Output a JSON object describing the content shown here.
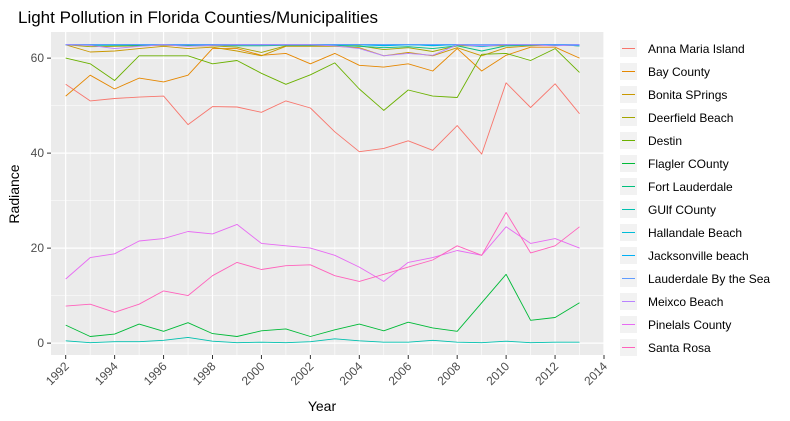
{
  "chart_data": {
    "type": "line",
    "title": "Light Pollution in Florida Counties/Municipalities",
    "xlabel": "Year",
    "ylabel": "Radiance",
    "xlim": [
      1991.4,
      2014.0
    ],
    "ylim": [
      -2.5,
      65.5
    ],
    "x_ticks": [
      "1992",
      "1994",
      "1996",
      "1998",
      "2000",
      "2002",
      "2004",
      "2006",
      "2008",
      "2010",
      "2012",
      "2014"
    ],
    "y_ticks": [
      "0",
      "20",
      "40",
      "60"
    ],
    "grid": true,
    "legend_position": "right",
    "x": [
      1992,
      1993,
      1994,
      1995,
      1996,
      1997,
      1998,
      1999,
      2000,
      2001,
      2002,
      2003,
      2004,
      2005,
      2006,
      2007,
      2008,
      2009,
      2010,
      2011,
      2012,
      2013
    ],
    "series": [
      {
        "name": "Anna Maria Island",
        "color": "#F8766D",
        "values": [
          54.5,
          51.0,
          51.5,
          51.8,
          52.0,
          46.0,
          49.8,
          49.7,
          48.6,
          51.0,
          49.5,
          44.5,
          40.3,
          41.0,
          42.6,
          40.6,
          45.8,
          39.8,
          54.8,
          49.6,
          54.6,
          48.3
        ]
      },
      {
        "name": "Bay County",
        "color": "#E58700",
        "values": [
          52.0,
          56.4,
          53.5,
          55.8,
          55.0,
          56.4,
          62.0,
          62.0,
          60.6,
          61.0,
          58.8,
          61.0,
          58.5,
          58.1,
          58.8,
          57.3,
          62.0,
          57.3,
          60.6,
          62.3,
          62.3,
          60.0
        ]
      },
      {
        "name": "Bonita SPrings",
        "color": "#C99800",
        "values": [
          62.8,
          61.3,
          61.5,
          62.0,
          62.5,
          62.0,
          62.3,
          61.5,
          60.5,
          62.5,
          62.5,
          62.5,
          62.2,
          60.5,
          61.2,
          60.5,
          62.2,
          60.5,
          62.2,
          62.6,
          62.8,
          62.6
        ]
      },
      {
        "name": "Deerfield Beach",
        "color": "#A3A500",
        "values": [
          62.8,
          62.4,
          62.5,
          62.6,
          62.7,
          62.6,
          62.6,
          62.3,
          61.2,
          62.6,
          62.6,
          62.6,
          62.6,
          61.8,
          62.2,
          61.4,
          62.6,
          62.6,
          62.6,
          62.7,
          62.8,
          62.6
        ]
      },
      {
        "name": "Destin",
        "color": "#6BB100",
        "values": [
          60.0,
          58.8,
          55.3,
          60.5,
          60.5,
          60.5,
          58.8,
          59.5,
          56.8,
          54.5,
          56.5,
          59.0,
          53.5,
          49.0,
          53.3,
          52.0,
          51.7,
          60.8,
          61.0,
          59.5,
          62.0,
          57.0
        ]
      },
      {
        "name": "Flagler COunty",
        "color": "#00BA38",
        "values": [
          3.8,
          1.4,
          1.9,
          4.0,
          2.5,
          4.3,
          2.0,
          1.4,
          2.6,
          3.0,
          1.4,
          2.8,
          4.0,
          2.6,
          4.4,
          3.2,
          2.5,
          8.5,
          14.5,
          4.8,
          5.4,
          8.5
        ]
      },
      {
        "name": "Fort Lauderdale",
        "color": "#00BF7D",
        "values": [
          62.8,
          62.7,
          62.7,
          62.7,
          62.8,
          62.7,
          62.7,
          62.6,
          62.6,
          62.7,
          62.7,
          62.7,
          62.5,
          62.2,
          62.4,
          62.0,
          62.6,
          61.5,
          62.6,
          62.7,
          62.8,
          62.6
        ]
      },
      {
        "name": "GUlf COunty",
        "color": "#00C0AF",
        "values": [
          0.5,
          0.1,
          0.3,
          0.3,
          0.6,
          1.2,
          0.4,
          0.1,
          0.2,
          0.1,
          0.3,
          0.9,
          0.5,
          0.2,
          0.2,
          0.6,
          0.2,
          0.1,
          0.4,
          0.1,
          0.2,
          0.2
        ]
      },
      {
        "name": "Hallandale Beach",
        "color": "#00BCD8",
        "values": [
          62.9,
          62.9,
          62.9,
          62.9,
          62.9,
          62.9,
          62.9,
          62.9,
          62.9,
          62.9,
          62.9,
          62.9,
          62.9,
          62.7,
          62.9,
          62.6,
          62.9,
          62.4,
          62.9,
          62.9,
          62.9,
          62.9
        ]
      },
      {
        "name": "Jacksonville beach",
        "color": "#00B0F6",
        "values": [
          62.8,
          62.8,
          62.8,
          62.8,
          62.8,
          62.8,
          62.8,
          62.8,
          62.8,
          62.8,
          62.8,
          62.8,
          62.8,
          62.6,
          62.8,
          62.7,
          62.8,
          62.6,
          62.8,
          62.8,
          62.8,
          62.6
        ]
      },
      {
        "name": "Lauderdale By the Sea",
        "color": "#619CFF",
        "values": [
          62.9,
          62.9,
          62.9,
          62.9,
          62.9,
          62.9,
          62.9,
          62.9,
          62.9,
          62.9,
          62.9,
          62.9,
          62.9,
          62.9,
          62.9,
          62.9,
          62.9,
          62.9,
          62.9,
          62.9,
          62.9,
          62.9
        ]
      },
      {
        "name": "Meixco Beach",
        "color": "#B983FF",
        "values": [
          62.8,
          62.7,
          62.0,
          62.5,
          62.8,
          62.5,
          62.7,
          62.8,
          62.8,
          62.8,
          62.8,
          62.6,
          62.0,
          60.5,
          61.0,
          60.6,
          62.8,
          62.6,
          62.8,
          62.8,
          62.6,
          62.8
        ]
      },
      {
        "name": "Pinelals County",
        "color": "#E76BF3",
        "values": [
          13.5,
          18.0,
          18.8,
          21.5,
          22.0,
          23.5,
          23.0,
          25.0,
          21.0,
          20.5,
          20.0,
          18.5,
          16.0,
          13.0,
          17.0,
          18.0,
          19.5,
          18.5,
          24.5,
          21.0,
          22.0,
          20.0
        ]
      },
      {
        "name": "Santa Rosa",
        "color": "#FF62BC",
        "values": [
          7.8,
          8.2,
          6.5,
          8.2,
          11.0,
          10.0,
          14.2,
          17.0,
          15.5,
          16.3,
          16.5,
          14.2,
          13.0,
          14.5,
          16.0,
          17.5,
          20.5,
          18.5,
          27.5,
          19.0,
          20.5,
          24.5
        ]
      }
    ]
  }
}
